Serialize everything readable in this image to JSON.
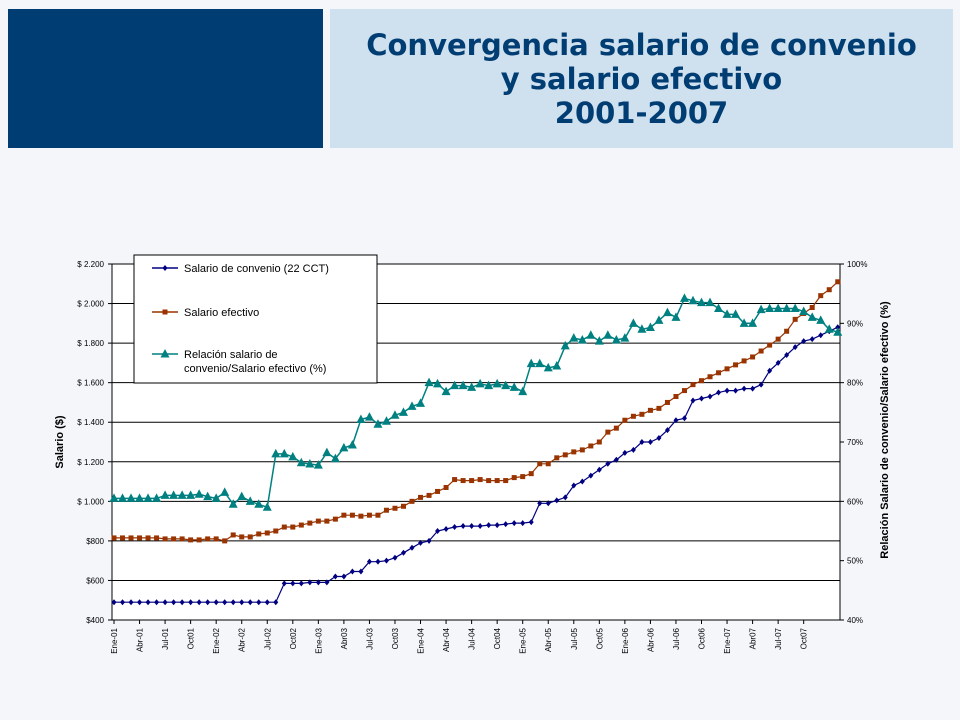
{
  "title": {
    "line1": "Convergencia salario de convenio",
    "line2": "y salario efectivo",
    "line3": "2001-2007"
  },
  "colors": {
    "header_dark": "#003d73",
    "header_light": "#cfe0ee",
    "series_convenio": "#000080",
    "series_efectivo": "#993300",
    "series_relacion": "#008080"
  },
  "chart_data": {
    "type": "line",
    "ylabel": "Salario ($)",
    "y2label": "Relación Salario de convenio/Salario efectivo (%)",
    "ylim": [
      400,
      2200
    ],
    "y2lim": [
      40,
      100
    ],
    "yticks": [
      "$ 2.200",
      "$ 2.000",
      "$ 1.800",
      "$ 1.600",
      "$ 1.400",
      "$ 1.200",
      "$ 1.000",
      "$800",
      "$600",
      "$400"
    ],
    "y2ticks": [
      "100%",
      "90%",
      "80%",
      "70%",
      "60%",
      "50%",
      "40%"
    ],
    "xticks": [
      "Ene-01",
      "Abr-01",
      "Jul-01",
      "Oct01",
      "Ene-02",
      "Abr-02",
      "Jul-02",
      "Oct02",
      "Ene-03",
      "Abr03",
      "Jul-03",
      "Oct03",
      "Ene-04",
      "Abr-04",
      "Jul-04",
      "Oct04",
      "Ene-05",
      "Abr-05",
      "Jul-05",
      "Oct05",
      "Ene-06",
      "Abr-06",
      "Jul-06",
      "Oct06",
      "Ene-07",
      "Abr07",
      "Jul-07",
      "Oct07"
    ],
    "legend_position": "top-left",
    "grid": true,
    "series": [
      {
        "name": "Salario de convenio (22 CCT)",
        "axis": "left",
        "marker": "diamond",
        "values": [
          490,
          490,
          490,
          490,
          490,
          490,
          490,
          490,
          490,
          490,
          490,
          490,
          490,
          490,
          490,
          490,
          490,
          490,
          490,
          490,
          585,
          585,
          585,
          590,
          590,
          590,
          620,
          620,
          645,
          645,
          695,
          695,
          700,
          715,
          740,
          765,
          790,
          800,
          850,
          860,
          870,
          875,
          875,
          875,
          880,
          880,
          885,
          890,
          890,
          895,
          990,
          990,
          1005,
          1020,
          1080,
          1100,
          1130,
          1160,
          1190,
          1210,
          1245,
          1260,
          1300,
          1300,
          1320,
          1360,
          1410,
          1420,
          1510,
          1520,
          1530,
          1550,
          1560,
          1560,
          1570,
          1570,
          1590,
          1660,
          1700,
          1740,
          1780,
          1810,
          1820,
          1840,
          1860,
          1880
        ]
      },
      {
        "name": "Salario efectivo",
        "axis": "left",
        "marker": "square",
        "values": [
          815,
          815,
          815,
          815,
          815,
          815,
          810,
          810,
          810,
          805,
          805,
          810,
          810,
          800,
          830,
          820,
          820,
          835,
          840,
          850,
          870,
          870,
          880,
          890,
          900,
          900,
          910,
          930,
          930,
          925,
          930,
          930,
          955,
          965,
          975,
          1000,
          1020,
          1030,
          1050,
          1070,
          1110,
          1105,
          1105,
          1110,
          1105,
          1105,
          1105,
          1120,
          1125,
          1140,
          1190,
          1190,
          1220,
          1235,
          1250,
          1260,
          1280,
          1300,
          1350,
          1370,
          1410,
          1430,
          1440,
          1460,
          1470,
          1500,
          1530,
          1560,
          1590,
          1610,
          1630,
          1650,
          1670,
          1690,
          1710,
          1730,
          1760,
          1790,
          1820,
          1860,
          1920,
          1950,
          1980,
          2040,
          2070,
          2110
        ]
      },
      {
        "name": "Relación salario de convenio/Salario efectivo (%)",
        "axis": "right",
        "marker": "triangle",
        "values": [
          60.5,
          60.5,
          60.5,
          60.5,
          60.5,
          60.5,
          61,
          61,
          61,
          61,
          61.2,
          60.8,
          60.5,
          61.5,
          59.5,
          60.8,
          60,
          59.5,
          59,
          68,
          68,
          67.5,
          66.5,
          66.3,
          66.1,
          68.2,
          67.2,
          69,
          69.5,
          73.8,
          74.2,
          73,
          73.5,
          74.5,
          75,
          76,
          76.5,
          80,
          79.8,
          78.5,
          79.5,
          79.5,
          79.2,
          79.8,
          79.5,
          79.8,
          79.5,
          79.2,
          78.5,
          83.2,
          83.2,
          82.5,
          82.8,
          86.2,
          87.5,
          87.2,
          88,
          87,
          88,
          87.2,
          87.5,
          90,
          89,
          89.3,
          90.5,
          91.8,
          91,
          94.2,
          93.8,
          93.5,
          93.5,
          92.5,
          91.5,
          91.5,
          90,
          90,
          92.3,
          92.5,
          92.5,
          92.5,
          92.5,
          92,
          91,
          90.5,
          89,
          88.5
        ]
      }
    ]
  }
}
